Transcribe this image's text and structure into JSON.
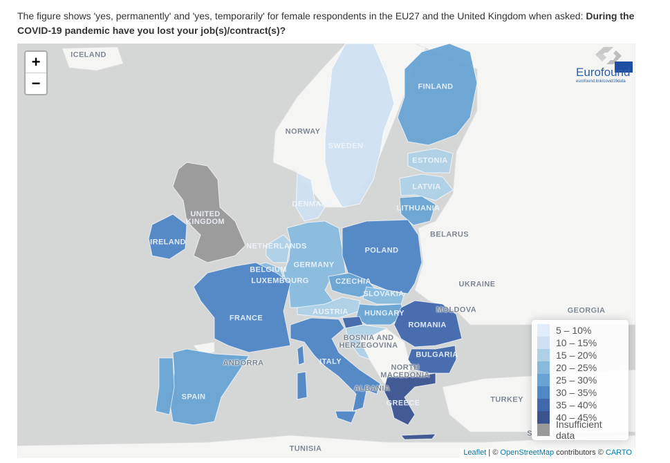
{
  "caption": {
    "text": "The figure shows 'yes, permanently' and 'yes, temporarily' for female respondents in the EU27 and the United Kingdom when asked: ",
    "question": "During the COVID-19 pandemic have you lost your job(s)/contract(s)?"
  },
  "zoom": {
    "in": "+",
    "out": "−"
  },
  "logo": {
    "brand": "Eurofound",
    "url": "eurofound.link/covid19data"
  },
  "legend": {
    "items": [
      {
        "label": "5 – 10%",
        "color": "#e2ecf8"
      },
      {
        "label": "10 – 15%",
        "color": "#cfe0f2"
      },
      {
        "label": "15 – 20%",
        "color": "#aed1e7"
      },
      {
        "label": "20 – 25%",
        "color": "#88bade"
      },
      {
        "label": "25 – 30%",
        "color": "#68a3d4"
      },
      {
        "label": "30 – 35%",
        "color": "#4f86c6"
      },
      {
        "label": "35 – 40%",
        "color": "#4168ad"
      },
      {
        "label": "40 – 45%",
        "color": "#3b5490"
      },
      {
        "label": "Insufficient data",
        "color": "#999999"
      }
    ]
  },
  "colors": {
    "sea": "#d5d7d7",
    "land": "#f5f5f4"
  },
  "countries": [
    {
      "name": "Sweden",
      "label": "SWEDEN",
      "bin": "10 – 15%"
    },
    {
      "name": "Finland",
      "label": "FINLAND",
      "bin": "25 – 30%"
    },
    {
      "name": "Estonia",
      "label": "ESTONIA",
      "bin": "15 – 20%"
    },
    {
      "name": "Latvia",
      "label": "LATVIA",
      "bin": "15 – 20%"
    },
    {
      "name": "Lithuania",
      "label": "LITHUANIA",
      "bin": "25 – 30%"
    },
    {
      "name": "Denmark",
      "label": "DENMARK",
      "bin": "10 – 15%"
    },
    {
      "name": "United Kingdom",
      "label": "UNITED KINGDOM",
      "bin": "Insufficient data"
    },
    {
      "name": "Ireland",
      "label": "IRELAND",
      "bin": "30 – 35%"
    },
    {
      "name": "Netherlands",
      "label": "NETHERLANDS",
      "bin": "15 – 20%"
    },
    {
      "name": "Belgium",
      "label": "BELGIUM",
      "bin": "20 – 25%"
    },
    {
      "name": "Luxembourg",
      "label": "LUXEMBOURG",
      "bin": "20 – 25%"
    },
    {
      "name": "Germany",
      "label": "GERMANY",
      "bin": "20 – 25%"
    },
    {
      "name": "Poland",
      "label": "POLAND",
      "bin": "30 – 35%"
    },
    {
      "name": "Czechia",
      "label": "CZECHIA",
      "bin": "25 – 30%"
    },
    {
      "name": "Slovakia",
      "label": "SLOVAKIA",
      "bin": "20 – 25%"
    },
    {
      "name": "Austria",
      "label": "AUSTRIA",
      "bin": "15 – 20%"
    },
    {
      "name": "Hungary",
      "label": "HUNGARY",
      "bin": "25 – 30%"
    },
    {
      "name": "Slovenia",
      "label": "",
      "bin": "35 – 40%"
    },
    {
      "name": "Croatia",
      "label": "",
      "bin": "15 – 20%"
    },
    {
      "name": "France",
      "label": "FRANCE",
      "bin": "30 – 35%"
    },
    {
      "name": "Spain",
      "label": "SPAIN",
      "bin": "25 – 30%"
    },
    {
      "name": "Portugal",
      "label": "",
      "bin": "25 – 30%"
    },
    {
      "name": "Italy",
      "label": "ITALY",
      "bin": "30 – 35%"
    },
    {
      "name": "Romania",
      "label": "ROMANIA",
      "bin": "35 – 40%"
    },
    {
      "name": "Bulgaria",
      "label": "BULGARIA",
      "bin": "35 – 40%"
    },
    {
      "name": "Greece",
      "label": "GREECE",
      "bin": "40 – 45%"
    }
  ],
  "place_labels": [
    {
      "key": "iceland",
      "text": "ICELAND"
    },
    {
      "key": "norway",
      "text": "NORWAY"
    },
    {
      "key": "belarus",
      "text": "BELARUS"
    },
    {
      "key": "ukraine",
      "text": "UKRAINE"
    },
    {
      "key": "moldova",
      "text": "MOLDOVA"
    },
    {
      "key": "bosnia",
      "text": "BOSNIA AND HERZEGOVINA"
    },
    {
      "key": "macedonia",
      "text": "NORTH MACEDONIA"
    },
    {
      "key": "albania",
      "text": "ALBANIA"
    },
    {
      "key": "andorra",
      "text": "ANDORRA"
    },
    {
      "key": "turkey",
      "text": "TURKEY"
    },
    {
      "key": "syria",
      "text": "SYRIA"
    },
    {
      "key": "tunisia",
      "text": "TUNISIA"
    },
    {
      "key": "georgia",
      "text": "GEORGIA"
    }
  ],
  "attribution": {
    "leaflet": "Leaflet",
    "sep": " | © ",
    "osm": "OpenStreetMap",
    "mid": " contributors © ",
    "carto": "CARTO"
  }
}
